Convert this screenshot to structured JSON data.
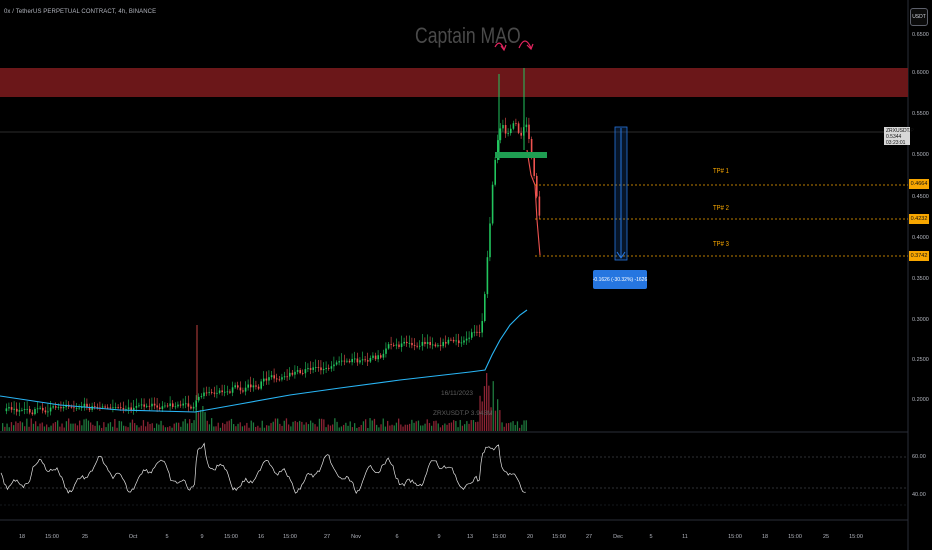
{
  "header": {
    "symbol_title": "0x / TetherUS PERPETUAL CONTRACT, 4h, BINANCE"
  },
  "watermark": "Captain MAO",
  "currency_button": "USDT",
  "price_axis": {
    "labels": [
      "0.6500",
      "0.6000",
      "0.5500",
      "0.5000",
      "0.4500",
      "0.4000",
      "0.3500",
      "0.3000",
      "0.2500",
      "0.2000"
    ]
  },
  "price_tags": {
    "last_symbol": "ZRXUSDT.P",
    "last_price": "0.5344",
    "countdown": "03:23:01",
    "tp1_price": "0.4664",
    "tp2_price": "0.4232",
    "tp3_price": "0.3742"
  },
  "targets": {
    "tp1": "TP# 1",
    "tp2": "TP# 2",
    "tp3": "TP# 3"
  },
  "measure_label": "-0.1626 (-30.32%) -1626",
  "volume_overlay": {
    "date": "16/11/2023",
    "volume": "ZRXUSDT.P 3.943M"
  },
  "oscillator_axis": {
    "labels": [
      "60.00",
      "40.00"
    ]
  },
  "time_axis": {
    "labels": [
      "18",
      "15:00",
      "25",
      "Oct",
      "5",
      "9",
      "15:00",
      "16",
      "15:00",
      "27",
      "Nov",
      "6",
      "9",
      "13",
      "15:00",
      "20",
      "15:00",
      "27",
      "Dec",
      "5",
      "11",
      "15:00",
      "18",
      "15:00",
      "25",
      "15:00"
    ]
  },
  "colors": {
    "up": "#26a69a",
    "up_bright": "#22c55e",
    "down": "#ef5350",
    "resistance_zone": "#6b1719",
    "ma_line": "#29b6f6",
    "tp_line": "#f7a600",
    "measure": "#2676e0"
  }
}
